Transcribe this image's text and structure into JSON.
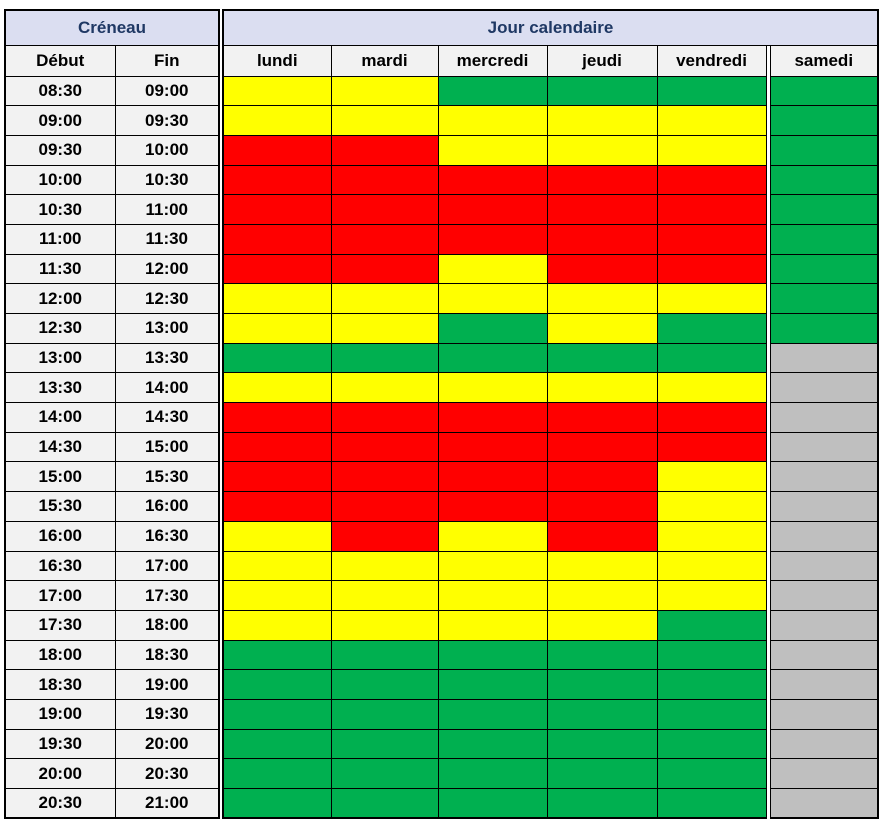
{
  "header": {
    "creneau": "Créneau",
    "jour_calendaire": "Jour calendaire",
    "debut": "Début",
    "fin": "Fin"
  },
  "colors": {
    "header_bg": "#DBDEF1",
    "header_text": "#1F3864",
    "label_bg": "#F2F2F2",
    "border": "#000000",
    "background": "#FFFFFF"
  },
  "chart_data": {
    "type": "heatmap",
    "x_label": "Jour calendaire",
    "y_label": "Créneau",
    "columns": [
      "lundi",
      "mardi",
      "mercredi",
      "jeudi",
      "vendredi",
      "samedi"
    ],
    "color_scale": {
      "green": "#00B050",
      "yellow": "#FFFF00",
      "red": "#FF0000",
      "gray": "#BFBFBF"
    },
    "rows": [
      {
        "debut": "08:30",
        "fin": "09:00",
        "values": [
          "yellow",
          "yellow",
          "green",
          "green",
          "green",
          "green"
        ]
      },
      {
        "debut": "09:00",
        "fin": "09:30",
        "values": [
          "yellow",
          "yellow",
          "yellow",
          "yellow",
          "yellow",
          "green"
        ]
      },
      {
        "debut": "09:30",
        "fin": "10:00",
        "values": [
          "red",
          "red",
          "yellow",
          "yellow",
          "yellow",
          "green"
        ]
      },
      {
        "debut": "10:00",
        "fin": "10:30",
        "values": [
          "red",
          "red",
          "red",
          "red",
          "red",
          "green"
        ]
      },
      {
        "debut": "10:30",
        "fin": "11:00",
        "values": [
          "red",
          "red",
          "red",
          "red",
          "red",
          "green"
        ]
      },
      {
        "debut": "11:00",
        "fin": "11:30",
        "values": [
          "red",
          "red",
          "red",
          "red",
          "red",
          "green"
        ]
      },
      {
        "debut": "11:30",
        "fin": "12:00",
        "values": [
          "red",
          "red",
          "yellow",
          "red",
          "red",
          "green"
        ]
      },
      {
        "debut": "12:00",
        "fin": "12:30",
        "values": [
          "yellow",
          "yellow",
          "yellow",
          "yellow",
          "yellow",
          "green"
        ]
      },
      {
        "debut": "12:30",
        "fin": "13:00",
        "values": [
          "yellow",
          "yellow",
          "green",
          "yellow",
          "green",
          "green"
        ]
      },
      {
        "debut": "13:00",
        "fin": "13:30",
        "values": [
          "green",
          "green",
          "green",
          "green",
          "green",
          "gray"
        ]
      },
      {
        "debut": "13:30",
        "fin": "14:00",
        "values": [
          "yellow",
          "yellow",
          "yellow",
          "yellow",
          "yellow",
          "gray"
        ]
      },
      {
        "debut": "14:00",
        "fin": "14:30",
        "values": [
          "red",
          "red",
          "red",
          "red",
          "red",
          "gray"
        ]
      },
      {
        "debut": "14:30",
        "fin": "15:00",
        "values": [
          "red",
          "red",
          "red",
          "red",
          "red",
          "gray"
        ]
      },
      {
        "debut": "15:00",
        "fin": "15:30",
        "values": [
          "red",
          "red",
          "red",
          "red",
          "yellow",
          "gray"
        ]
      },
      {
        "debut": "15:30",
        "fin": "16:00",
        "values": [
          "red",
          "red",
          "red",
          "red",
          "yellow",
          "gray"
        ]
      },
      {
        "debut": "16:00",
        "fin": "16:30",
        "values": [
          "yellow",
          "red",
          "yellow",
          "red",
          "yellow",
          "gray"
        ]
      },
      {
        "debut": "16:30",
        "fin": "17:00",
        "values": [
          "yellow",
          "yellow",
          "yellow",
          "yellow",
          "yellow",
          "gray"
        ]
      },
      {
        "debut": "17:00",
        "fin": "17:30",
        "values": [
          "yellow",
          "yellow",
          "yellow",
          "yellow",
          "yellow",
          "gray"
        ]
      },
      {
        "debut": "17:30",
        "fin": "18:00",
        "values": [
          "yellow",
          "yellow",
          "yellow",
          "yellow",
          "green",
          "gray"
        ]
      },
      {
        "debut": "18:00",
        "fin": "18:30",
        "values": [
          "green",
          "green",
          "green",
          "green",
          "green",
          "gray"
        ]
      },
      {
        "debut": "18:30",
        "fin": "19:00",
        "values": [
          "green",
          "green",
          "green",
          "green",
          "green",
          "gray"
        ]
      },
      {
        "debut": "19:00",
        "fin": "19:30",
        "values": [
          "green",
          "green",
          "green",
          "green",
          "green",
          "gray"
        ]
      },
      {
        "debut": "19:30",
        "fin": "20:00",
        "values": [
          "green",
          "green",
          "green",
          "green",
          "green",
          "gray"
        ]
      },
      {
        "debut": "20:00",
        "fin": "20:30",
        "values": [
          "green",
          "green",
          "green",
          "green",
          "green",
          "gray"
        ]
      },
      {
        "debut": "20:30",
        "fin": "21:00",
        "values": [
          "green",
          "green",
          "green",
          "green",
          "green",
          "gray"
        ]
      }
    ]
  }
}
